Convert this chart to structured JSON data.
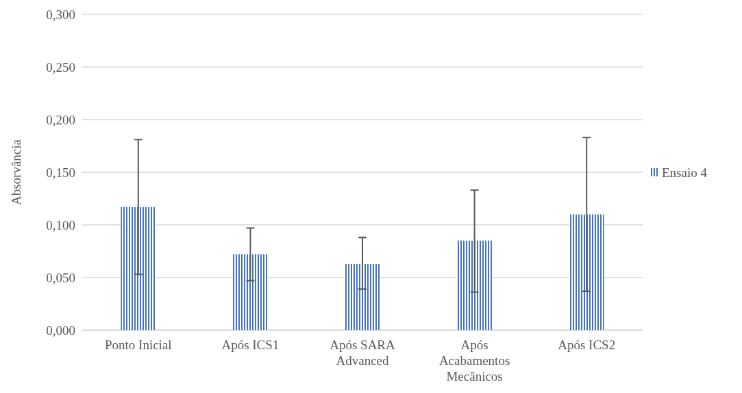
{
  "chart_data": {
    "type": "bar",
    "ylabel": "Absorvância",
    "categories": [
      "Ponto Inicial",
      "Após ICS1",
      "Após SARA Advanced",
      "Após Acabamentos Mecânicos",
      "Após ICS2"
    ],
    "series": [
      {
        "name": "Ensaio 4",
        "color": "#4472c4",
        "values": [
          0.117,
          0.072,
          0.063,
          0.085,
          0.11
        ],
        "errors": [
          [
            0.053,
            0.181
          ],
          [
            0.047,
            0.097
          ],
          [
            0.039,
            0.088
          ],
          [
            0.036,
            0.133
          ],
          [
            0.037,
            0.183
          ]
        ]
      }
    ],
    "ylim": [
      0,
      0.3
    ],
    "yticks": [
      {
        "value": 0,
        "label": "0,000"
      },
      {
        "value": 0.05,
        "label": "0,050"
      },
      {
        "value": 0.1,
        "label": "0,100"
      },
      {
        "value": 0.15,
        "label": "0,150"
      },
      {
        "value": 0.2,
        "label": "0,200"
      },
      {
        "value": 0.25,
        "label": "0,250"
      },
      {
        "value": 0.3,
        "label": "0,300"
      }
    ],
    "grid": "y",
    "legend": "right"
  }
}
